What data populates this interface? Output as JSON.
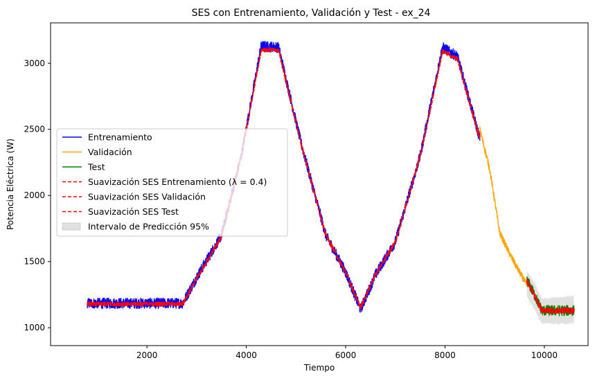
{
  "chart_data": {
    "type": "line",
    "title": "SES con Entrenamiento, Validación y Test - ex_24",
    "xlabel": "Tiempo",
    "ylabel": "Potencia Eléctrica (W)",
    "xlim": [
      60,
      10880
    ],
    "ylim": [
      865,
      3305
    ],
    "xticks": [
      2000,
      4000,
      6000,
      8000,
      10000
    ],
    "yticks": [
      1000,
      1500,
      2000,
      2500,
      3000
    ],
    "grid": false,
    "legend_position": "center-left",
    "series": [
      {
        "name": "Entrenamiento",
        "color": "#0000ff",
        "style": "solid",
        "noise_band": 40,
        "points": [
          [
            800,
            1185
          ],
          [
            2720,
            1185
          ],
          [
            3000,
            1380
          ],
          [
            3500,
            1700
          ],
          [
            3900,
            2300
          ],
          [
            4300,
            3130
          ],
          [
            4650,
            3120
          ],
          [
            5100,
            2400
          ],
          [
            5600,
            1700
          ],
          [
            6000,
            1420
          ],
          [
            6300,
            1140
          ],
          [
            6600,
            1400
          ],
          [
            7000,
            1650
          ],
          [
            7500,
            2300
          ],
          [
            7950,
            3120
          ],
          [
            8250,
            3050
          ],
          [
            8700,
            2430
          ]
        ]
      },
      {
        "name": "Validación",
        "color": "#ffa500",
        "style": "solid",
        "noise_band": 25,
        "points": [
          [
            8700,
            2500
          ],
          [
            8900,
            2200
          ],
          [
            9100,
            1720
          ],
          [
            9300,
            1560
          ],
          [
            9500,
            1420
          ],
          [
            9650,
            1320
          ]
        ]
      },
      {
        "name": "Test",
        "color": "#008000",
        "style": "solid",
        "noise_band": 40,
        "points": [
          [
            9650,
            1360
          ],
          [
            9800,
            1250
          ],
          [
            9950,
            1130
          ],
          [
            10200,
            1130
          ],
          [
            10600,
            1130
          ]
        ]
      },
      {
        "name": "Suavización SES Entrenamiento ($\\lambda = 0.4$)",
        "color": "#ff0000",
        "style": "dashed",
        "noise_band": 15,
        "points": [
          [
            800,
            1180
          ],
          [
            2720,
            1180
          ],
          [
            3000,
            1370
          ],
          [
            3500,
            1690
          ],
          [
            3900,
            2300
          ],
          [
            4300,
            3100
          ],
          [
            4650,
            3100
          ],
          [
            5100,
            2400
          ],
          [
            5600,
            1700
          ],
          [
            6000,
            1420
          ],
          [
            6300,
            1150
          ],
          [
            6600,
            1400
          ],
          [
            7000,
            1650
          ],
          [
            7500,
            2300
          ],
          [
            7950,
            3090
          ],
          [
            8250,
            3030
          ],
          [
            8700,
            2430
          ]
        ]
      },
      {
        "name": "Suavización SES Validación",
        "color": "#ff0000",
        "style": "dashed",
        "noise_band": 0,
        "points": []
      },
      {
        "name": "Suavización SES Test",
        "color": "#ff0000",
        "style": "dashed",
        "noise_band": 20,
        "points": [
          [
            9650,
            1355
          ],
          [
            9800,
            1245
          ],
          [
            9950,
            1130
          ],
          [
            10200,
            1130
          ],
          [
            10600,
            1130
          ]
        ]
      }
    ],
    "prediction_interval": {
      "name": "Intervalo de Predicción 95%",
      "color": "#c8c8c8",
      "points": [
        [
          9650,
          1230,
          1430
        ],
        [
          9800,
          1140,
          1340
        ],
        [
          9950,
          1030,
          1220
        ],
        [
          10200,
          1030,
          1230
        ],
        [
          10600,
          1030,
          1240
        ]
      ]
    }
  }
}
